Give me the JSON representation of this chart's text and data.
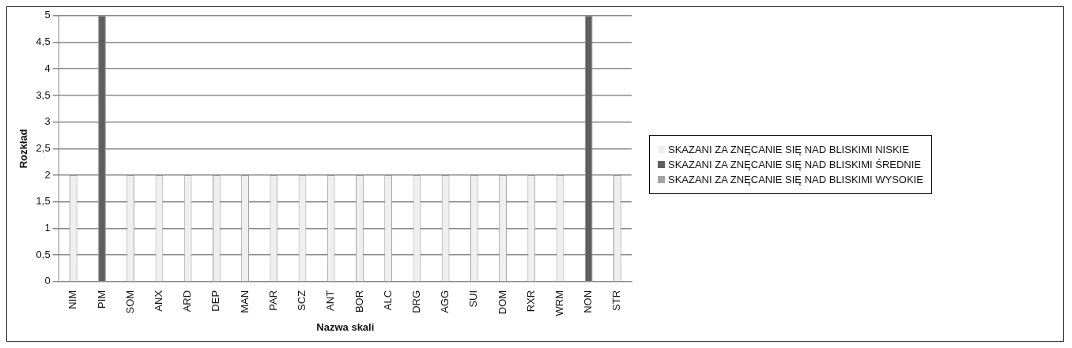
{
  "chart_data": {
    "type": "bar",
    "stacked": true,
    "xlabel": "Nazwa skali",
    "ylabel": "Rozkład",
    "categories": [
      "NIM",
      "PIM",
      "SOM",
      "ANX",
      "ARD",
      "DEP",
      "MAN",
      "PAR",
      "SCZ",
      "ANT",
      "BOR",
      "ALC",
      "DRG",
      "AGG",
      "SUI",
      "DOM",
      "RXR",
      "WRM",
      "NON",
      "STR"
    ],
    "series": [
      {
        "name": "SKAZANI ZA ZNĘCANIE SIĘ NAD BLISKIMI NISKIE",
        "color": "#efefef",
        "values": [
          2,
          null,
          2,
          2,
          2,
          2,
          2,
          2,
          2,
          2,
          2,
          2,
          2,
          2,
          2,
          2,
          2,
          2,
          null,
          2
        ]
      },
      {
        "name": "SKAZANI ZA ZNĘCANIE SIĘ NAD BLISKIMI ŚREDNIE",
        "color": "#5f5f5f",
        "values": [
          null,
          5,
          null,
          null,
          null,
          null,
          null,
          null,
          null,
          null,
          null,
          null,
          null,
          null,
          null,
          null,
          null,
          null,
          5,
          null
        ]
      },
      {
        "name": "SKAZANI ZA ZNĘCANIE SIĘ NAD BLISKIMI WYSOKIE",
        "color": "#a3a3a3",
        "values": [
          null,
          null,
          null,
          null,
          null,
          null,
          null,
          null,
          null,
          null,
          null,
          null,
          null,
          null,
          null,
          null,
          null,
          null,
          null,
          null
        ]
      }
    ],
    "ylim": [
      0,
      5
    ],
    "yticks": [
      0,
      {
        "value": 0.5,
        "label": "0,5"
      },
      1,
      {
        "value": 1.5,
        "label": "1,5"
      },
      2,
      {
        "value": 2.5,
        "label": "2,5"
      },
      3,
      {
        "value": 3.5,
        "label": "3,5"
      },
      4,
      {
        "value": 4.5,
        "label": "4,5"
      },
      5
    ],
    "grid": "y",
    "legend": "right"
  }
}
